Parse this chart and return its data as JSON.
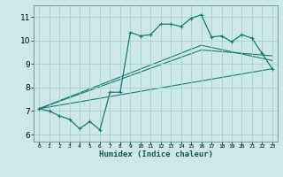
{
  "xlabel": "Humidex (Indice chaleur)",
  "ylabel": "",
  "background_color": "#cce8e8",
  "line_color": "#1a7a6e",
  "grid_color": "#aad0d0",
  "xlim": [
    -0.5,
    23.5
  ],
  "ylim": [
    5.7,
    11.5
  ],
  "xticks": [
    0,
    1,
    2,
    3,
    4,
    5,
    6,
    7,
    8,
    9,
    10,
    11,
    12,
    13,
    14,
    15,
    16,
    17,
    18,
    19,
    20,
    21,
    22,
    23
  ],
  "yticks": [
    6,
    7,
    8,
    9,
    10,
    11
  ],
  "main_line": [
    [
      0,
      7.1
    ],
    [
      1,
      7.0
    ],
    [
      2,
      6.8
    ],
    [
      3,
      6.65
    ],
    [
      4,
      6.25
    ],
    [
      5,
      6.55
    ],
    [
      6,
      6.2
    ],
    [
      7,
      7.8
    ],
    [
      8,
      7.8
    ],
    [
      9,
      10.35
    ],
    [
      10,
      10.2
    ],
    [
      11,
      10.25
    ],
    [
      12,
      10.7
    ],
    [
      13,
      10.7
    ],
    [
      14,
      10.6
    ],
    [
      15,
      10.95
    ],
    [
      16,
      11.1
    ],
    [
      17,
      10.15
    ],
    [
      18,
      10.2
    ],
    [
      19,
      9.95
    ],
    [
      20,
      10.25
    ],
    [
      21,
      10.1
    ],
    [
      22,
      9.45
    ],
    [
      23,
      8.8
    ]
  ],
  "trend_line1": [
    [
      0,
      7.1
    ],
    [
      23,
      8.8
    ]
  ],
  "trend_line2": [
    [
      0,
      7.1
    ],
    [
      16,
      9.6
    ],
    [
      23,
      9.35
    ]
  ],
  "trend_line3": [
    [
      0,
      7.1
    ],
    [
      16,
      9.8
    ],
    [
      23,
      9.15
    ]
  ]
}
